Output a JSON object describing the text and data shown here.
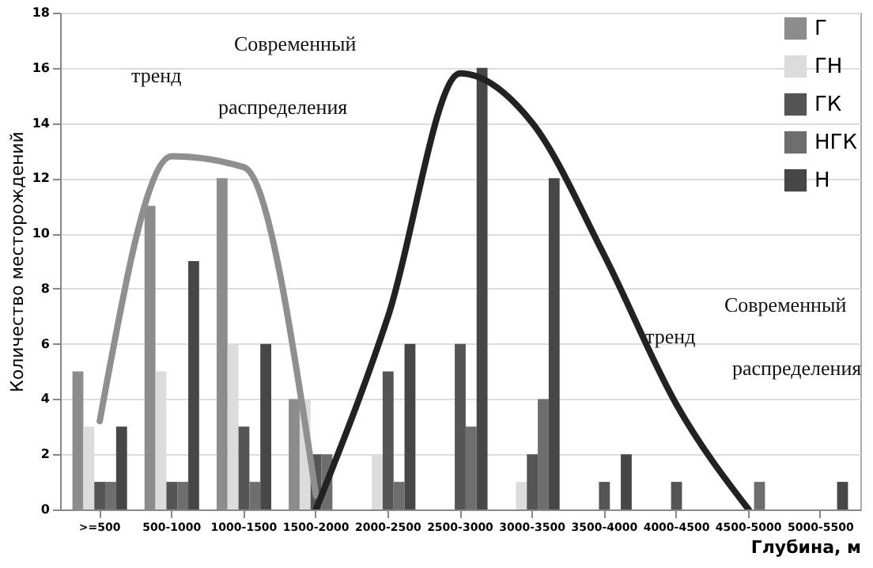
{
  "chart_data": {
    "type": "bar",
    "xlabel": "Глубина, м",
    "ylabel": "Количество месторождений",
    "categories": [
      ">=500",
      "500-1000",
      "1000-1500",
      "1500-2000",
      "2000-2500",
      "2500-3000",
      "3000-3500",
      "3500-4000",
      "4000-4500",
      "4500-5000",
      "5000-5500"
    ],
    "series": [
      {
        "name": "Г",
        "color": "#8c8c8c",
        "values": [
          5,
          11,
          12,
          4,
          0,
          0,
          0,
          0,
          0,
          0,
          0
        ]
      },
      {
        "name": "ГН",
        "color": "#dcdcdc",
        "values": [
          3,
          5,
          6,
          4,
          2,
          0,
          1,
          0,
          0,
          0,
          0
        ]
      },
      {
        "name": "ГК",
        "color": "#555555",
        "values": [
          1,
          1,
          3,
          2,
          5,
          6,
          2,
          1,
          1,
          0,
          0
        ]
      },
      {
        "name": "НГК",
        "color": "#6e6e6e",
        "values": [
          1,
          1,
          1,
          2,
          1,
          3,
          4,
          0,
          0,
          1,
          0
        ]
      },
      {
        "name": "Н",
        "color": "#474747",
        "values": [
          3,
          9,
          6,
          0,
          6,
          16,
          12,
          2,
          0,
          0,
          1
        ]
      },
      {
        "type": "line",
        "color": "#8f8f8f",
        "x": [
          ">=500",
          "500-1000",
          "1000-1500",
          "1500-2000"
        ],
        "values": [
          3.2,
          12.8,
          12.4,
          0.5
        ]
      },
      {
        "type": "line",
        "color": "#222222",
        "x": [
          "1500-2000",
          "2000-2500",
          "2500-3000",
          "3000-3500",
          "3500-4000",
          "4000-4500",
          "4500-5000"
        ],
        "values": [
          0,
          7,
          15.8,
          14,
          9.2,
          3.8,
          0
        ]
      }
    ],
    "ylim": [
      0,
      18
    ],
    "yticks": [
      0,
      2,
      4,
      6,
      8,
      10,
      12,
      14,
      16,
      18
    ],
    "grid": "y",
    "legend": "top right",
    "annotations": [
      "Современный",
      "тренд",
      "распределения",
      "Современный",
      "тренд",
      "распределения"
    ]
  }
}
